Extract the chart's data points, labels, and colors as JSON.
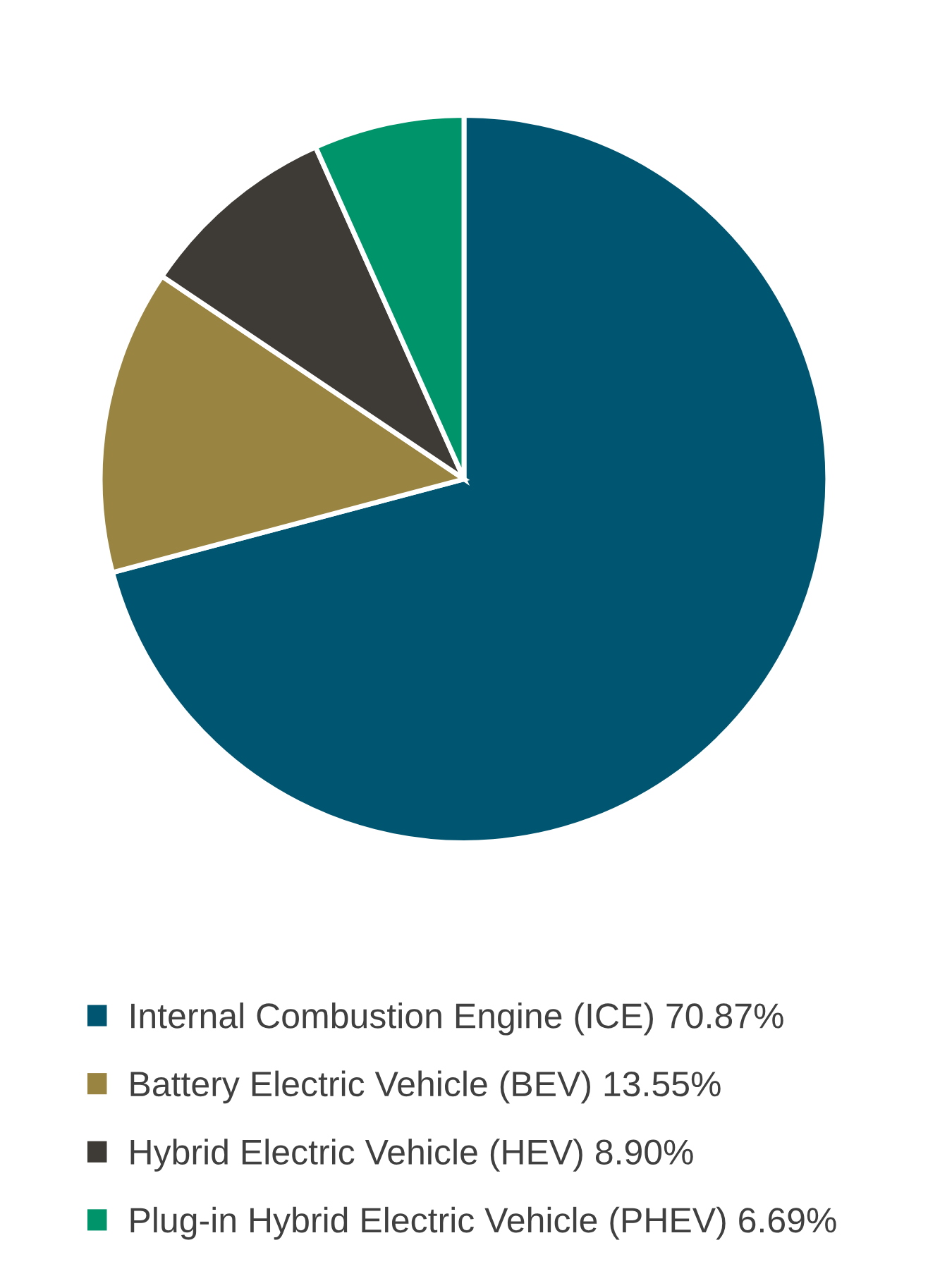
{
  "chart_data": {
    "type": "pie",
    "categories": [
      "Internal Combustion Engine (ICE) 70.87%",
      "Battery Electric Vehicle (BEV) 13.55%",
      "Hybrid Electric Vehicle (HEV) 8.90%",
      "Plug-in Hybrid Electric Vehicle (PHEV) 6.69%"
    ],
    "values": [
      70.87,
      13.55,
      8.9,
      6.69
    ],
    "colors": [
      "#005570",
      "#9a8442",
      "#3e3a35",
      "#00946a"
    ],
    "legend": "bottom"
  }
}
